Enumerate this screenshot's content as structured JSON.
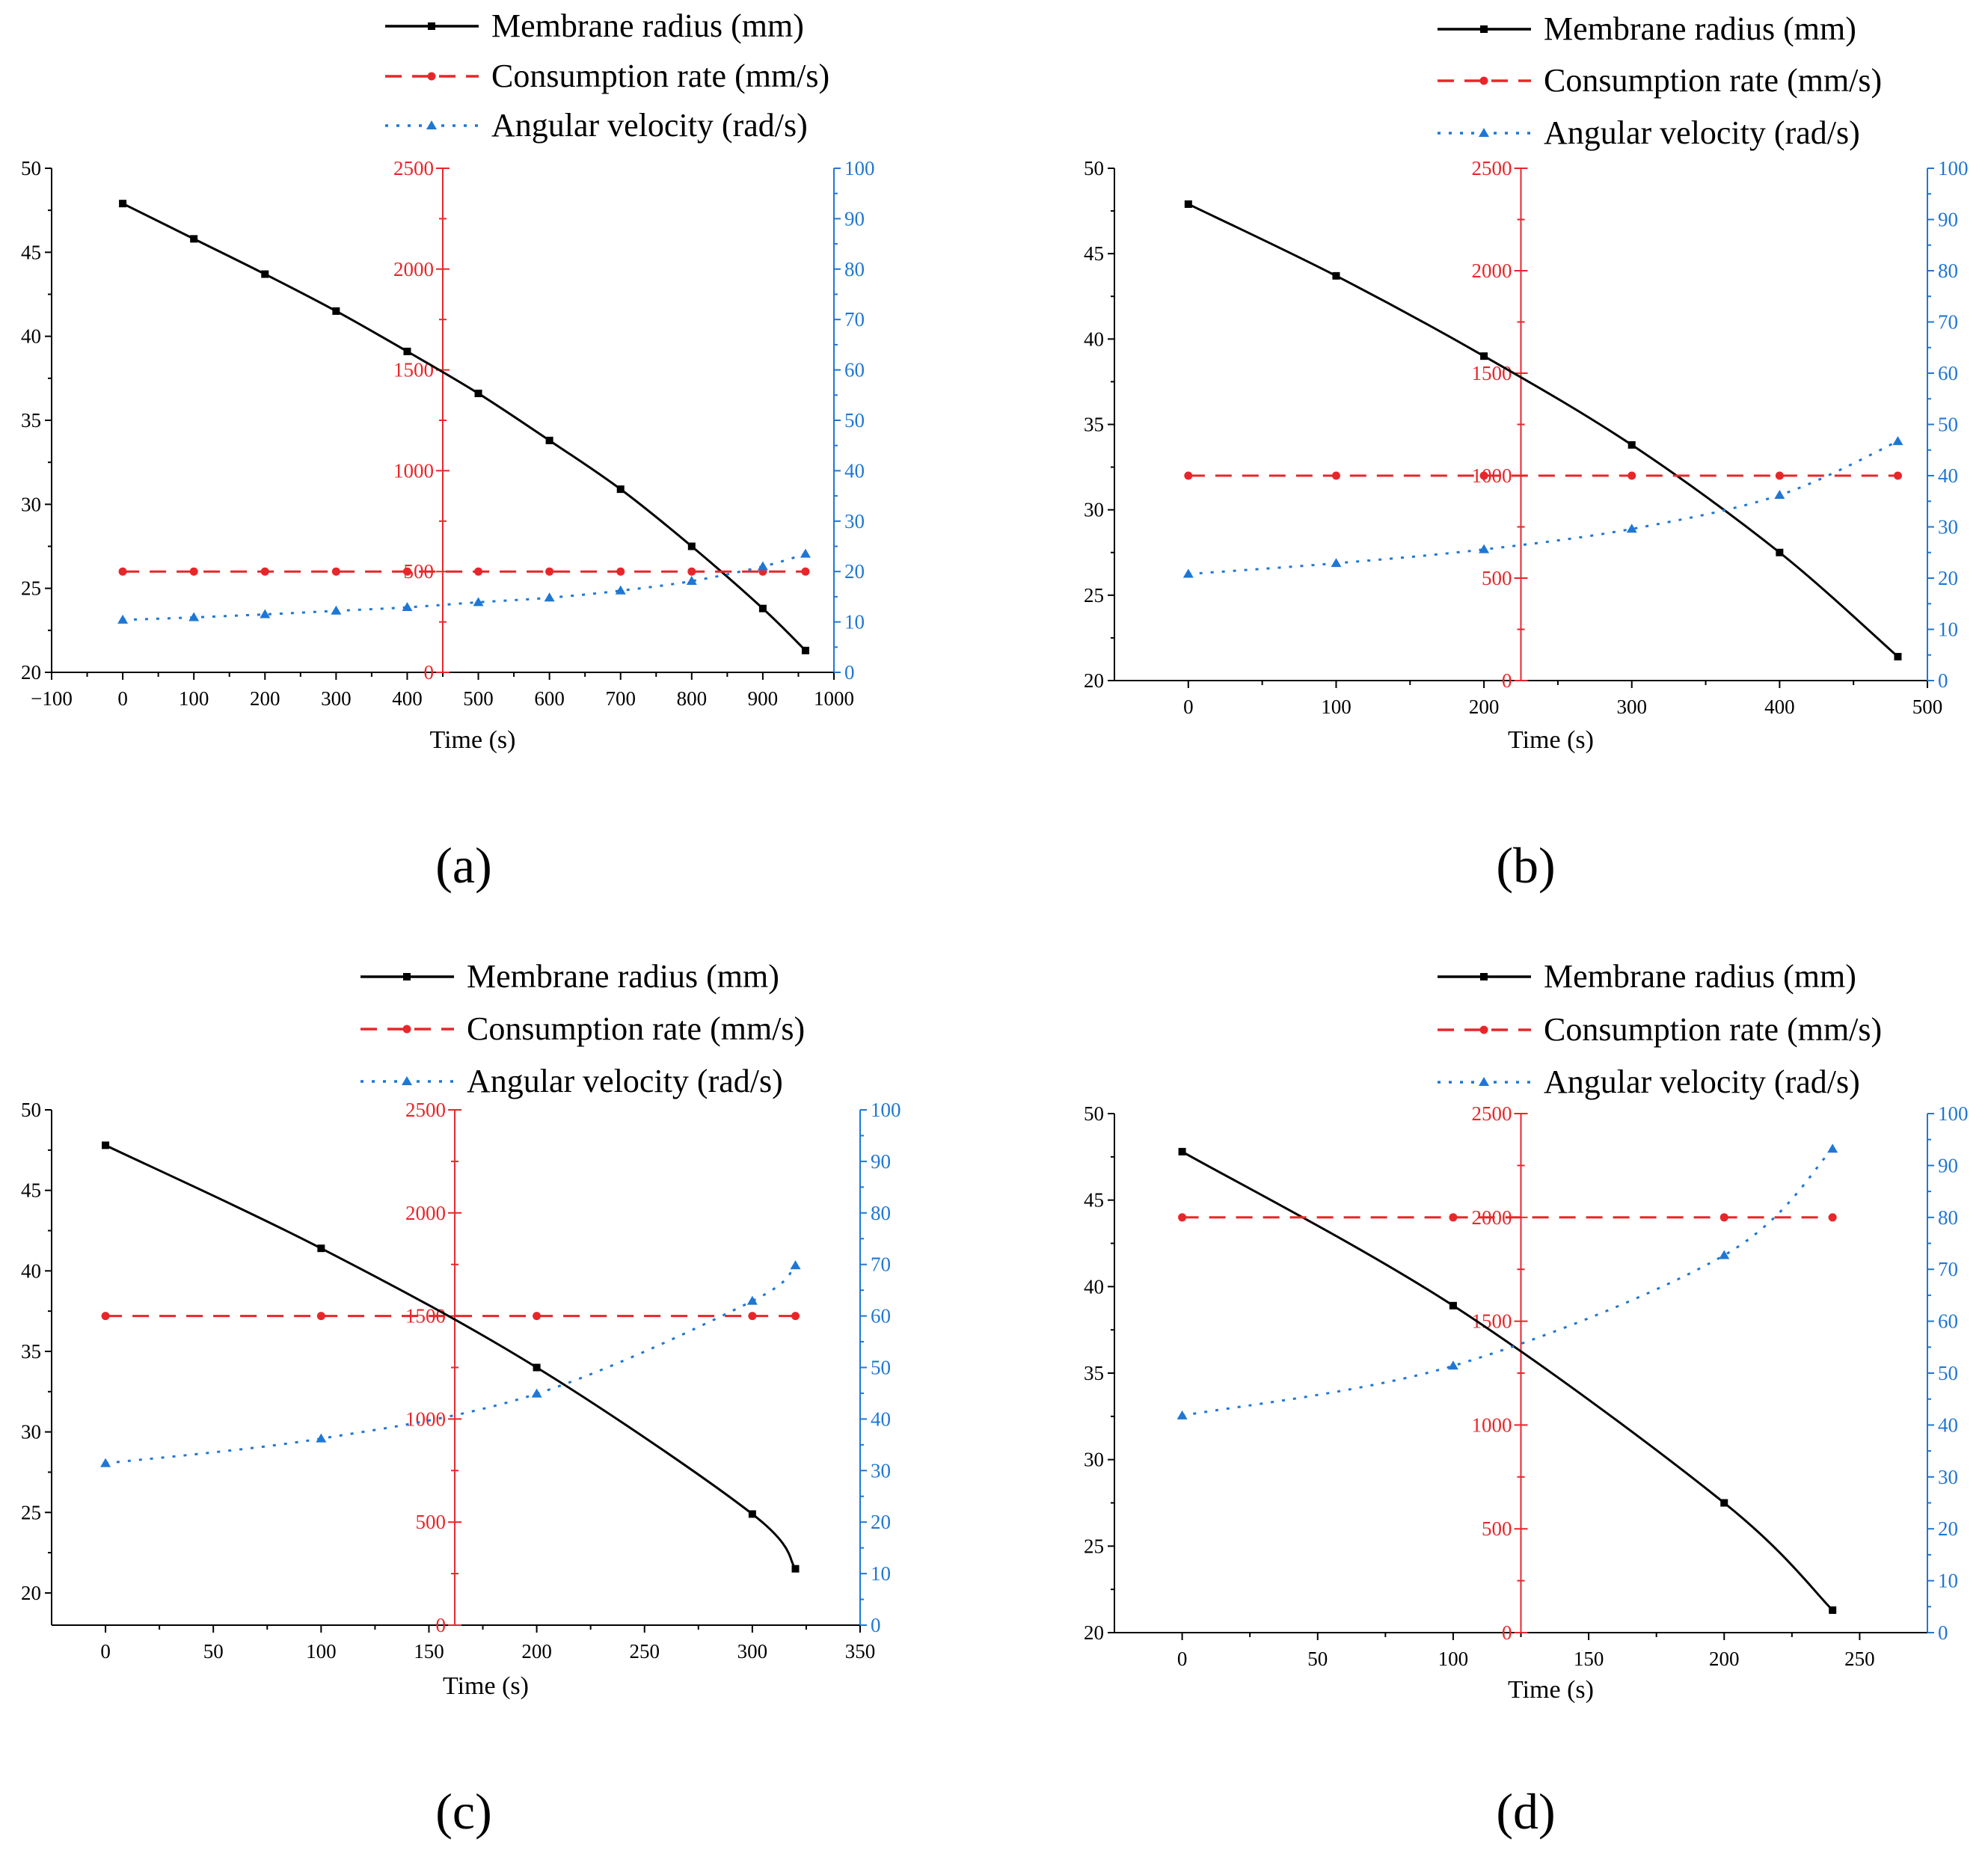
{
  "colors": {
    "radius": "#000000",
    "consumption": "#e8262a",
    "angular": "#1f77d4"
  },
  "legend": {
    "radius": "Membrane radius (mm)",
    "consumption": "Consumption rate (mm/s)",
    "angular": "Angular velocity (rad/s)"
  },
  "chart_data": [
    {
      "type": "line",
      "panel_label": "(a)",
      "xlabel": "Time (s)",
      "xlim": [
        -100,
        1000
      ],
      "xticks": [
        -100,
        0,
        100,
        200,
        300,
        400,
        500,
        600,
        700,
        800,
        900,
        1000
      ],
      "y_left": {
        "lim": [
          20,
          50
        ],
        "ticks": [
          20,
          25,
          30,
          35,
          40,
          45,
          50
        ]
      },
      "y_middle": {
        "lim": [
          0,
          2500
        ],
        "ticks": [
          0,
          500,
          1000,
          1500,
          2000,
          2500
        ],
        "at_x": 450
      },
      "y_right": {
        "lim": [
          0,
          100
        ],
        "ticks": [
          0,
          10,
          20,
          30,
          40,
          50,
          60,
          70,
          80,
          90,
          100
        ]
      },
      "series": [
        {
          "name": "Membrane radius (mm)",
          "axis": "left",
          "x": [
            0,
            100,
            200,
            300,
            400,
            500,
            600,
            700,
            800,
            900,
            960
          ],
          "values": [
            47.9,
            45.8,
            43.7,
            41.5,
            39.1,
            36.6,
            33.8,
            30.9,
            27.5,
            23.8,
            21.3
          ]
        },
        {
          "name": "Consumption rate (mm/s)",
          "axis": "middle",
          "x": [
            0,
            100,
            200,
            300,
            400,
            500,
            600,
            700,
            800,
            900,
            960
          ],
          "values": [
            500,
            500,
            500,
            500,
            500,
            500,
            500,
            500,
            500,
            500,
            500
          ]
        },
        {
          "name": "Angular velocity (rad/s)",
          "axis": "right",
          "x": [
            0,
            100,
            200,
            300,
            400,
            500,
            600,
            700,
            800,
            900,
            960
          ],
          "values": [
            10.4,
            10.9,
            11.5,
            12.2,
            12.9,
            13.9,
            14.8,
            16.2,
            18.1,
            21.0,
            23.5
          ]
        }
      ]
    },
    {
      "type": "line",
      "panel_label": "(b)",
      "xlabel": "Time (s)",
      "xlim": [
        -50,
        500
      ],
      "xticks": [
        0,
        100,
        200,
        300,
        400,
        500
      ],
      "y_left": {
        "lim": [
          20,
          50
        ],
        "ticks": [
          20,
          25,
          30,
          35,
          40,
          45,
          50
        ]
      },
      "y_middle": {
        "lim": [
          0,
          2500
        ],
        "ticks": [
          0,
          500,
          1000,
          1500,
          2000,
          2500
        ],
        "at_x": 225
      },
      "y_right": {
        "lim": [
          0,
          100
        ],
        "ticks": [
          0,
          10,
          20,
          30,
          40,
          50,
          60,
          70,
          80,
          90,
          100
        ]
      },
      "series": [
        {
          "name": "Membrane radius (mm)",
          "axis": "left",
          "x": [
            0,
            100,
            200,
            300,
            400,
            480
          ],
          "values": [
            47.9,
            43.7,
            39.0,
            33.8,
            27.5,
            21.4
          ]
        },
        {
          "name": "Consumption rate (mm/s)",
          "axis": "middle",
          "x": [
            0,
            100,
            200,
            300,
            400,
            480
          ],
          "values": [
            1000,
            1000,
            1000,
            1000,
            1000,
            1000
          ]
        },
        {
          "name": "Angular velocity (rad/s)",
          "axis": "right",
          "x": [
            0,
            100,
            200,
            300,
            400,
            480
          ],
          "values": [
            20.8,
            22.9,
            25.6,
            29.6,
            36.2,
            46.7
          ]
        }
      ]
    },
    {
      "type": "line",
      "panel_label": "(c)",
      "xlabel": "Time (s)",
      "xlim": [
        -25,
        350
      ],
      "xticks": [
        0,
        50,
        100,
        150,
        200,
        250,
        300,
        350
      ],
      "y_left": {
        "lim": [
          18,
          50
        ],
        "ticks": [
          20,
          25,
          30,
          35,
          40,
          45,
          50
        ]
      },
      "y_middle": {
        "lim": [
          0,
          2500
        ],
        "ticks": [
          0,
          500,
          1000,
          1500,
          2000,
          2500
        ],
        "at_x": 162
      },
      "y_right": {
        "lim": [
          0,
          100
        ],
        "ticks": [
          0,
          10,
          20,
          30,
          40,
          50,
          60,
          70,
          80,
          90,
          100
        ]
      },
      "series": [
        {
          "name": "Membrane radius (mm)",
          "axis": "left",
          "x": [
            0,
            100,
            200,
            300,
            320
          ],
          "values": [
            47.8,
            41.4,
            34.0,
            24.9,
            21.5
          ]
        },
        {
          "name": "Consumption rate (mm/s)",
          "axis": "middle",
          "x": [
            0,
            100,
            200,
            300,
            320
          ],
          "values": [
            1500,
            1500,
            1500,
            1500,
            1500
          ]
        },
        {
          "name": "Angular velocity (rad/s)",
          "axis": "right",
          "x": [
            0,
            100,
            200,
            300,
            320
          ],
          "values": [
            31.4,
            36.2,
            44.9,
            62.9,
            69.8
          ]
        }
      ]
    },
    {
      "type": "line",
      "panel_label": "(d)",
      "xlabel": "Time (s)",
      "xlim": [
        -25,
        275
      ],
      "xticks": [
        0,
        50,
        100,
        150,
        200,
        250
      ],
      "y_left": {
        "lim": [
          20,
          50
        ],
        "ticks": [
          20,
          25,
          30,
          35,
          40,
          45,
          50
        ]
      },
      "y_middle": {
        "lim": [
          0,
          2500
        ],
        "ticks": [
          0,
          500,
          1000,
          1500,
          2000,
          2500
        ],
        "at_x": 125
      },
      "y_right": {
        "lim": [
          0,
          100
        ],
        "ticks": [
          0,
          10,
          20,
          30,
          40,
          50,
          60,
          70,
          80,
          90,
          100
        ]
      },
      "series": [
        {
          "name": "Membrane radius (mm)",
          "axis": "left",
          "x": [
            0,
            100,
            200,
            240
          ],
          "values": [
            47.8,
            38.9,
            27.5,
            21.3
          ]
        },
        {
          "name": "Consumption rate (mm/s)",
          "axis": "middle",
          "x": [
            0,
            100,
            200,
            240
          ],
          "values": [
            2000,
            2000,
            2000,
            2000
          ]
        },
        {
          "name": "Angular velocity (rad/s)",
          "axis": "right",
          "x": [
            0,
            100,
            200,
            240
          ],
          "values": [
            41.8,
            51.4,
            72.7,
            93.2
          ]
        }
      ]
    }
  ]
}
